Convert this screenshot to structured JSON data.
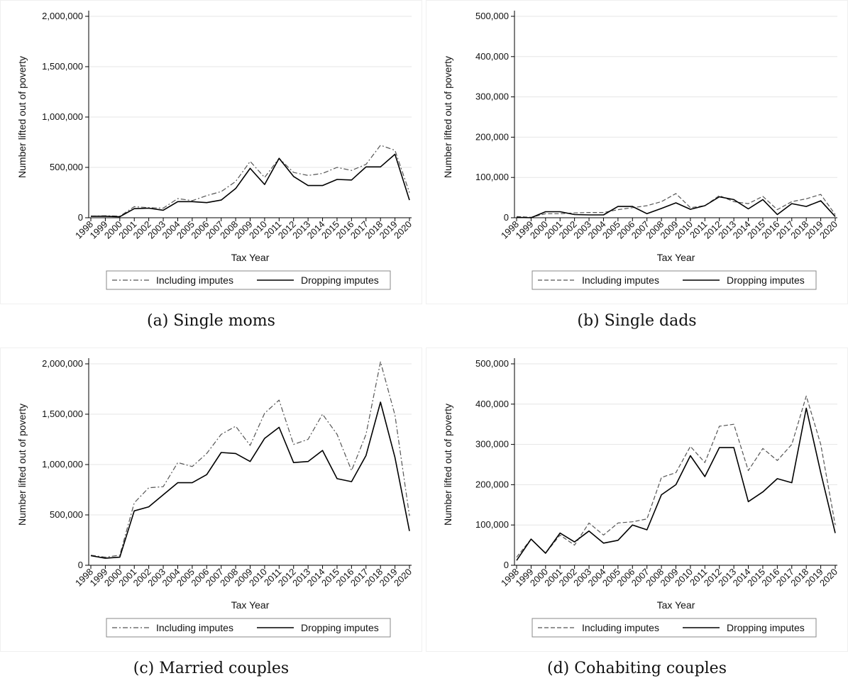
{
  "colors": {
    "including": "#555555",
    "dropping": "#000000",
    "grid": "#e6e6e6",
    "frame": "#c8c8c8"
  },
  "panels": [
    {
      "caption": "(a) Single moms",
      "chart_data": {
        "type": "line",
        "xlabel": "Tax Year",
        "ylabel": "Number lifted out of poverty",
        "ylim": [
          0,
          2000000
        ],
        "yticks": [
          0,
          500000,
          1000000,
          1500000,
          2000000
        ],
        "ytick_labels": [
          "0",
          "500,000",
          "1,000,000",
          "1,500,000",
          "2,000,000"
        ],
        "x": [
          1998,
          1999,
          2000,
          2001,
          2002,
          2003,
          2004,
          2005,
          2006,
          2007,
          2008,
          2009,
          2010,
          2011,
          2012,
          2013,
          2014,
          2015,
          2016,
          2017,
          2018,
          2019,
          2020
        ],
        "series": [
          {
            "name": "Including imputes",
            "style": "dashdot",
            "values": [
              15000,
              20000,
              15000,
              110000,
              100000,
              95000,
              190000,
              170000,
              220000,
              260000,
              360000,
              560000,
              400000,
              590000,
              450000,
              420000,
              440000,
              500000,
              470000,
              530000,
              720000,
              670000,
              250000
            ]
          },
          {
            "name": "Dropping imputes",
            "style": "solid",
            "values": [
              15000,
              15000,
              10000,
              90000,
              95000,
              75000,
              160000,
              160000,
              150000,
              175000,
              290000,
              490000,
              330000,
              590000,
              410000,
              320000,
              320000,
              380000,
              375000,
              505000,
              505000,
              630000,
              175000
            ]
          }
        ],
        "legend": "bottom",
        "grid": true
      }
    },
    {
      "caption": "(b) Single dads",
      "chart_data": {
        "type": "line",
        "xlabel": "Tax Year",
        "ylabel": "Number lifted out of poverty",
        "ylim": [
          0,
          500000
        ],
        "yticks": [
          0,
          100000,
          200000,
          300000,
          400000,
          500000
        ],
        "ytick_labels": [
          "0",
          "100,000",
          "200,000",
          "300,000",
          "400,000",
          "500,000"
        ],
        "x": [
          1998,
          1999,
          2000,
          2001,
          2002,
          2003,
          2004,
          2005,
          2006,
          2007,
          2008,
          2009,
          2010,
          2011,
          2012,
          2013,
          2014,
          2015,
          2016,
          2017,
          2018,
          2019,
          2020
        ],
        "series": [
          {
            "name": "Including imputes",
            "style": "dashed",
            "values": [
              3000,
              1000,
              10000,
              10000,
              12000,
              13000,
              13000,
              20000,
              25000,
              30000,
              40000,
              60000,
              25000,
              30000,
              55000,
              40000,
              35000,
              53000,
              20000,
              40000,
              47000,
              58000,
              8000
            ]
          },
          {
            "name": "Dropping imputes",
            "style": "solid",
            "values": [
              1000,
              0,
              15000,
              15000,
              8000,
              7000,
              7000,
              28000,
              28000,
              10000,
              23000,
              37000,
              21000,
              30000,
              52000,
              45000,
              22000,
              45000,
              8000,
              35000,
              28000,
              42000,
              3000
            ]
          }
        ],
        "legend": "bottom",
        "grid": true
      }
    },
    {
      "caption": "(c) Married couples",
      "chart_data": {
        "type": "line",
        "xlabel": "Tax Year",
        "ylabel": "Number lifted out of poverty",
        "ylim": [
          0,
          2000000
        ],
        "yticks": [
          0,
          500000,
          1000000,
          1500000,
          2000000
        ],
        "ytick_labels": [
          "0",
          "500,000",
          "1,000,000",
          "1,500,000",
          "2,000,000"
        ],
        "x": [
          1998,
          1999,
          2000,
          2001,
          2002,
          2003,
          2004,
          2005,
          2006,
          2007,
          2008,
          2009,
          2010,
          2011,
          2012,
          2013,
          2014,
          2015,
          2016,
          2017,
          2018,
          2019,
          2020
        ],
        "series": [
          {
            "name": "Including imputes",
            "style": "dashdot",
            "values": [
              100000,
              80000,
              100000,
              620000,
              770000,
              780000,
              1020000,
              980000,
              1110000,
              1300000,
              1380000,
              1190000,
              1510000,
              1640000,
              1200000,
              1250000,
              1500000,
              1300000,
              940000,
              1300000,
              2020000,
              1490000,
              490000
            ]
          },
          {
            "name": "Dropping imputes",
            "style": "solid",
            "values": [
              95000,
              70000,
              80000,
              540000,
              580000,
              700000,
              820000,
              820000,
              900000,
              1120000,
              1110000,
              1030000,
              1260000,
              1370000,
              1020000,
              1030000,
              1140000,
              860000,
              830000,
              1090000,
              1620000,
              1070000,
              340000
            ]
          }
        ],
        "legend": "bottom",
        "grid": true
      }
    },
    {
      "caption": "(d) Cohabiting couples",
      "chart_data": {
        "type": "line",
        "xlabel": "Tax Year",
        "ylabel": "Number lifted out of poverty",
        "ylim": [
          0,
          500000
        ],
        "yticks": [
          0,
          100000,
          200000,
          300000,
          400000,
          500000
        ],
        "ytick_labels": [
          "0",
          "100,000",
          "200,000",
          "300,000",
          "400,000",
          "500,000"
        ],
        "x": [
          1998,
          1999,
          2000,
          2001,
          2002,
          2003,
          2004,
          2005,
          2006,
          2007,
          2008,
          2009,
          2010,
          2011,
          2012,
          2013,
          2014,
          2015,
          2016,
          2017,
          2018,
          2019,
          2020
        ],
        "series": [
          {
            "name": "Including imputes",
            "style": "dashed",
            "values": [
              20000,
              65000,
              30000,
              75000,
              50000,
              105000,
              75000,
              105000,
              108000,
              115000,
              218000,
              230000,
              295000,
              255000,
              345000,
              350000,
              235000,
              290000,
              260000,
              300000,
              420000,
              300000,
              100000
            ]
          },
          {
            "name": "Dropping imputes",
            "style": "solid",
            "values": [
              12000,
              65000,
              30000,
              80000,
              58000,
              85000,
              55000,
              62000,
              100000,
              88000,
              175000,
              200000,
              272000,
              220000,
              292000,
              292000,
              158000,
              182000,
              215000,
              205000,
              390000,
              230000,
              80000
            ]
          }
        ],
        "legend": "bottom",
        "grid": true
      }
    }
  ]
}
